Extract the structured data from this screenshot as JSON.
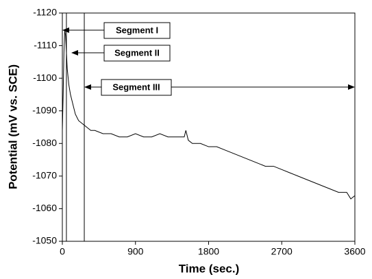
{
  "chart_data": {
    "type": "line",
    "xlabel": "Time (sec.)",
    "ylabel": "Potential (mV vs. SCE)",
    "x": [
      0,
      10,
      20,
      30,
      40,
      50,
      60,
      80,
      100,
      130,
      160,
      200,
      250,
      300,
      350,
      400,
      500,
      600,
      700,
      800,
      900,
      1000,
      1100,
      1200,
      1300,
      1400,
      1500,
      1520,
      1550,
      1600,
      1700,
      1800,
      1900,
      2000,
      2100,
      2200,
      2300,
      2400,
      2500,
      2600,
      2700,
      2800,
      2900,
      3000,
      3100,
      3200,
      3300,
      3400,
      3500,
      3550,
      3600
    ],
    "series": [
      {
        "color": "#000000",
        "values": [
          -1084,
          -1095,
          -1108,
          -1115,
          -1113,
          -1108,
          -1103,
          -1098,
          -1095,
          -1092,
          -1089,
          -1087,
          -1086,
          -1085,
          -1084,
          -1084,
          -1083,
          -1083,
          -1082,
          -1082,
          -1083,
          -1082,
          -1082,
          -1083,
          -1082,
          -1082,
          -1082,
          -1084,
          -1081,
          -1080,
          -1080,
          -1079,
          -1079,
          -1078,
          -1077,
          -1076,
          -1075,
          -1074,
          -1073,
          -1073,
          -1072,
          -1071,
          -1070,
          -1069,
          -1068,
          -1067,
          -1066,
          -1065,
          -1065,
          -1063,
          -1064
        ]
      }
    ],
    "xlim": [
      0,
      3600
    ],
    "xticks": [
      0,
      900,
      1800,
      2700,
      3600
    ],
    "ylim": [
      -1050,
      -1120
    ],
    "yticks": [
      -1050,
      -1060,
      -1070,
      -1080,
      -1090,
      -1100,
      -1110,
      -1120
    ],
    "vlines": [
      50,
      270
    ],
    "annotations": [
      "Segment I",
      "Segment II",
      "Segment III"
    ]
  }
}
